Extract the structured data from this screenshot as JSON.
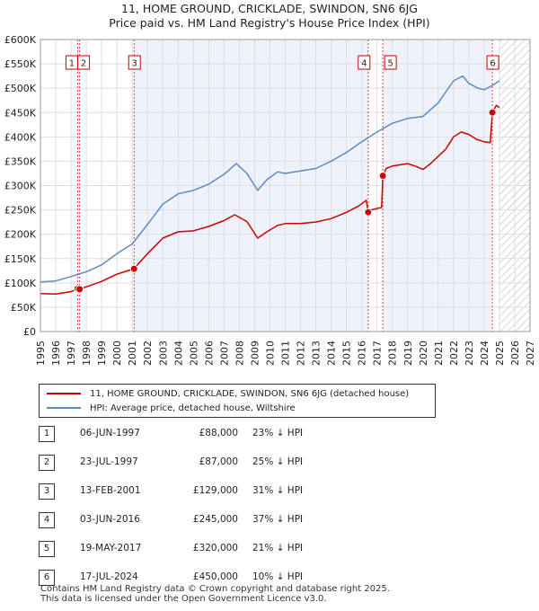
{
  "title": "11, HOME GROUND, CRICKLADE, SWINDON, SN6 6JG",
  "subtitle": "Price paid vs. HM Land Registry's House Price Index (HPI)",
  "colors": {
    "property": "#cc0000",
    "hpi": "#5b8ac4",
    "shade": "#eef2fb",
    "marker_line": "#dd4444"
  },
  "legend": {
    "property_label": "11, HOME GROUND, CRICKLADE, SWINDON, SN6 6JG (detached house)",
    "hpi_label": "HPI: Average price, detached house, Wiltshire"
  },
  "sales": [
    {
      "num": "1",
      "date": "06-JUN-1997",
      "price": "£88,000",
      "hpi": "23% ↓ HPI"
    },
    {
      "num": "2",
      "date": "23-JUL-1997",
      "price": "£87,000",
      "hpi": "25% ↓ HPI"
    },
    {
      "num": "3",
      "date": "13-FEB-2001",
      "price": "£129,000",
      "hpi": "31% ↓ HPI"
    },
    {
      "num": "4",
      "date": "03-JUN-2016",
      "price": "£245,000",
      "hpi": "37% ↓ HPI"
    },
    {
      "num": "5",
      "date": "19-MAY-2017",
      "price": "£320,000",
      "hpi": "21% ↓ HPI"
    },
    {
      "num": "6",
      "date": "17-JUL-2024",
      "price": "£450,000",
      "hpi": "10% ↓ HPI"
    }
  ],
  "footer": {
    "line1": "Contains HM Land Registry data © Crown copyright and database right 2025.",
    "line2": "This data is licensed under the Open Government Licence v3.0."
  },
  "chart_data": {
    "type": "line",
    "xlim": [
      1995,
      2027
    ],
    "ylim": [
      0,
      600000
    ],
    "x_ticks": [
      "1995",
      "1996",
      "1997",
      "1998",
      "1999",
      "2000",
      "2001",
      "2002",
      "2003",
      "2004",
      "2005",
      "2006",
      "2007",
      "2008",
      "2009",
      "2010",
      "2011",
      "2012",
      "2013",
      "2014",
      "2015",
      "2016",
      "2017",
      "2018",
      "2019",
      "2020",
      "2021",
      "2022",
      "2023",
      "2024",
      "2025",
      "2026",
      "2027"
    ],
    "y_ticks": [
      {
        "value": 0,
        "label": "£0"
      },
      {
        "value": 50000,
        "label": "£50K"
      },
      {
        "value": 100000,
        "label": "£100K"
      },
      {
        "value": 150000,
        "label": "£150K"
      },
      {
        "value": 200000,
        "label": "£200K"
      },
      {
        "value": 250000,
        "label": "£250K"
      },
      {
        "value": 300000,
        "label": "£300K"
      },
      {
        "value": 350000,
        "label": "£350K"
      },
      {
        "value": 400000,
        "label": "£400K"
      },
      {
        "value": 450000,
        "label": "£450K"
      },
      {
        "value": 500000,
        "label": "£500K"
      },
      {
        "value": 550000,
        "label": "£550K"
      },
      {
        "value": 600000,
        "label": "£600K"
      }
    ],
    "grid": true,
    "shaded_periods": [
      [
        1997.43,
        1997.56
      ],
      [
        2001.12,
        2016.42
      ],
      [
        2017.38,
        2024.54
      ]
    ],
    "hatched_from": 2025.0,
    "sale_markers": [
      {
        "label": "1",
        "x": 1997.43,
        "y": 88000
      },
      {
        "label": "2",
        "x": 1997.56,
        "y": 87000
      },
      {
        "label": "3",
        "x": 2001.12,
        "y": 129000
      },
      {
        "label": "4",
        "x": 2016.42,
        "y": 245000
      },
      {
        "label": "5",
        "x": 2017.38,
        "y": 320000
      },
      {
        "label": "6",
        "x": 2024.54,
        "y": 450000
      }
    ],
    "series": [
      {
        "name": "11, HOME GROUND, CRICKLADE, SWINDON, SN6 6JG (detached house)",
        "color": "#cc0000",
        "points": [
          [
            1995.0,
            78000
          ],
          [
            1996.0,
            77000
          ],
          [
            1997.0,
            82000
          ],
          [
            1997.43,
            88000
          ],
          [
            1997.56,
            87000
          ],
          [
            1998.0,
            92000
          ],
          [
            1999.0,
            103000
          ],
          [
            2000.0,
            118000
          ],
          [
            2001.12,
            129000
          ],
          [
            2002.0,
            160000
          ],
          [
            2003.0,
            192000
          ],
          [
            2004.0,
            205000
          ],
          [
            2005.0,
            207000
          ],
          [
            2006.0,
            216000
          ],
          [
            2007.0,
            228000
          ],
          [
            2007.7,
            240000
          ],
          [
            2008.5,
            226000
          ],
          [
            2009.2,
            192000
          ],
          [
            2009.8,
            205000
          ],
          [
            2010.5,
            218000
          ],
          [
            2011.0,
            222000
          ],
          [
            2012.0,
            222000
          ],
          [
            2013.0,
            225000
          ],
          [
            2014.0,
            232000
          ],
          [
            2015.0,
            245000
          ],
          [
            2015.8,
            258000
          ],
          [
            2016.3,
            270000
          ],
          [
            2016.42,
            245000
          ],
          [
            2016.6,
            250000
          ],
          [
            2017.3,
            255000
          ],
          [
            2017.38,
            320000
          ],
          [
            2017.6,
            335000
          ],
          [
            2018.0,
            340000
          ],
          [
            2019.0,
            345000
          ],
          [
            2019.5,
            340000
          ],
          [
            2020.0,
            333000
          ],
          [
            2020.5,
            345000
          ],
          [
            2021.0,
            360000
          ],
          [
            2021.5,
            375000
          ],
          [
            2022.0,
            400000
          ],
          [
            2022.5,
            410000
          ],
          [
            2023.0,
            405000
          ],
          [
            2023.5,
            395000
          ],
          [
            2024.0,
            390000
          ],
          [
            2024.4,
            388000
          ],
          [
            2024.54,
            450000
          ],
          [
            2024.8,
            465000
          ],
          [
            2025.0,
            460000
          ]
        ]
      },
      {
        "name": "HPI: Average price, detached house, Wiltshire",
        "color": "#5b8ac4",
        "points": [
          [
            1995.0,
            102000
          ],
          [
            1996.0,
            104000
          ],
          [
            1997.0,
            113000
          ],
          [
            1998.0,
            123000
          ],
          [
            1999.0,
            137000
          ],
          [
            2000.0,
            160000
          ],
          [
            2001.0,
            180000
          ],
          [
            2002.0,
            220000
          ],
          [
            2003.0,
            262000
          ],
          [
            2004.0,
            283000
          ],
          [
            2005.0,
            290000
          ],
          [
            2006.0,
            303000
          ],
          [
            2007.0,
            323000
          ],
          [
            2007.8,
            345000
          ],
          [
            2008.5,
            325000
          ],
          [
            2009.2,
            290000
          ],
          [
            2009.8,
            312000
          ],
          [
            2010.5,
            328000
          ],
          [
            2011.0,
            325000
          ],
          [
            2012.0,
            330000
          ],
          [
            2013.0,
            335000
          ],
          [
            2014.0,
            350000
          ],
          [
            2015.0,
            368000
          ],
          [
            2016.0,
            390000
          ],
          [
            2017.0,
            410000
          ],
          [
            2018.0,
            428000
          ],
          [
            2019.0,
            438000
          ],
          [
            2020.0,
            442000
          ],
          [
            2021.0,
            470000
          ],
          [
            2022.0,
            515000
          ],
          [
            2022.6,
            525000
          ],
          [
            2023.0,
            510000
          ],
          [
            2023.6,
            500000
          ],
          [
            2024.0,
            497000
          ],
          [
            2024.5,
            505000
          ],
          [
            2025.0,
            515000
          ]
        ]
      }
    ]
  }
}
